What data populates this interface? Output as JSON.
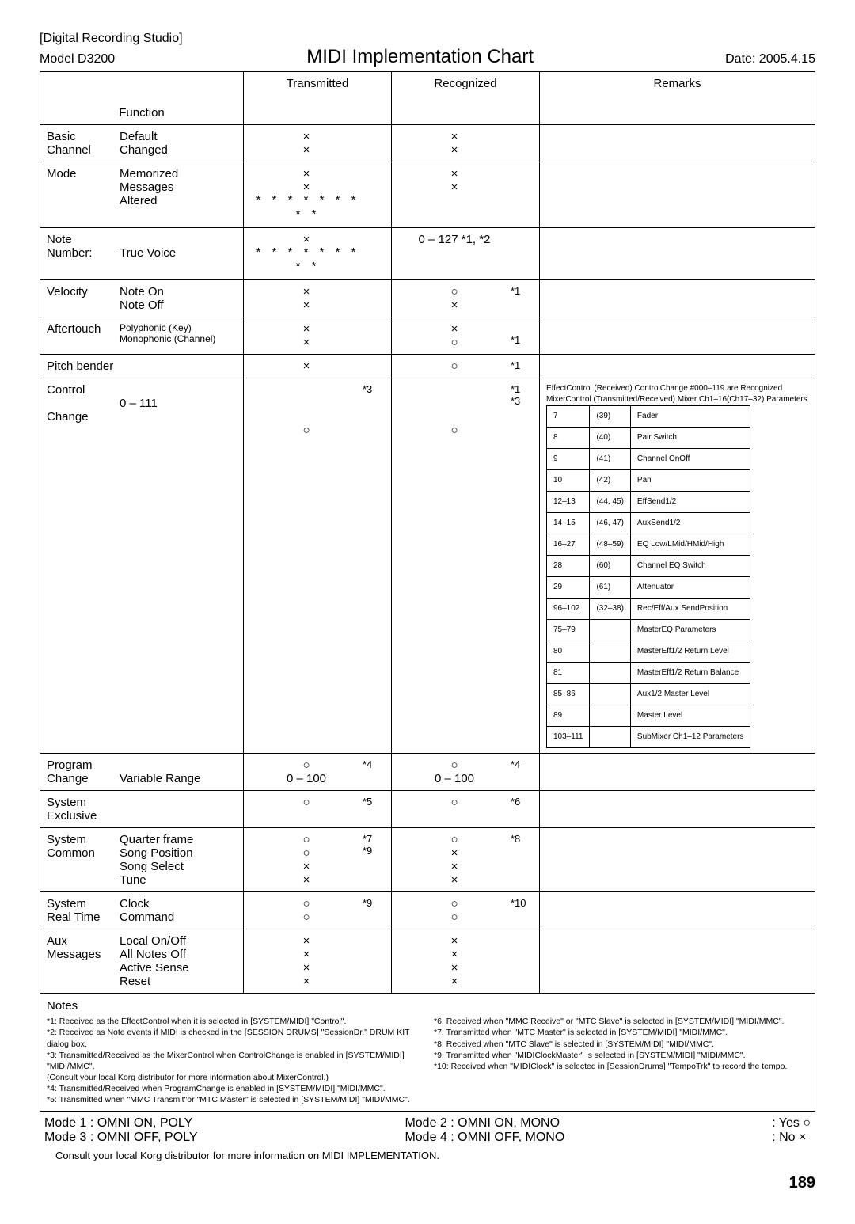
{
  "header": {
    "bracket": "[Digital Recording Studio]",
    "model": "Model D3200",
    "title": "MIDI Implementation Chart",
    "date": "Date: 2005.4.15"
  },
  "columns": {
    "fn": "Function",
    "tx": "Transmitted",
    "rx": "Recognized",
    "rm": "Remarks"
  },
  "rows": [
    {
      "fn_left": "Basic\nChannel",
      "fn_right": "Default\nChanged",
      "tx_main": "×\n×",
      "tx_note": "",
      "rx_main": "×\n×",
      "rx_note": "",
      "remarks": ""
    },
    {
      "fn_left": "Mode",
      "fn_right": "Memorized\nMessages\nAltered",
      "tx_main": "×\n×\n* * * * * * * * *",
      "tx_note": "",
      "rx_main": "×\n×",
      "rx_note": "",
      "remarks": ""
    },
    {
      "fn_left": "Note\nNumber:",
      "fn_right": "\nTrue Voice",
      "tx_main": "×\n* * * * * * * * *",
      "tx_note": "",
      "rx_main": "0 – 127  *1, *2",
      "rx_note": "",
      "remarks": ""
    },
    {
      "fn_left": "Velocity",
      "fn_right": "Note On\nNote Off",
      "tx_main": "×\n×",
      "tx_note": "",
      "rx_main": "○\n×",
      "rx_note": "*1",
      "remarks": ""
    },
    {
      "fn_left": "Aftertouch",
      "fn_right": "Polyphonic (Key)\nMonophonic (Channel)",
      "fn_right_small": true,
      "tx_main": "×\n×",
      "tx_note": "",
      "rx_main": "×\n○",
      "rx_note": "\n*1",
      "remarks": ""
    },
    {
      "fn_left": "Pitch bender",
      "fn_right": "",
      "tx_main": "×",
      "tx_note": "",
      "rx_main": "○",
      "rx_note": "*1",
      "remarks": ""
    },
    {
      "fn_left": "Control\n\nChange",
      "fn_right": "\n0 – 111",
      "tx_main": "\n\n\n○",
      "tx_note": "*3",
      "rx_main": "\n\n\n○",
      "rx_note": "*1\n*3",
      "remarks_cc": true
    },
    {
      "fn_left": "Program\nChange",
      "fn_right": "\nVariable Range",
      "tx_main": "○\n0 – 100",
      "tx_note": "*4",
      "rx_main": "○\n0 – 100",
      "rx_note": "*4",
      "remarks": ""
    },
    {
      "fn_left": "System Exclusive",
      "fn_right": "",
      "tx_main": "○",
      "tx_note": "*5",
      "rx_main": "○",
      "rx_note": "*6",
      "remarks": ""
    },
    {
      "fn_left": "System\nCommon",
      "fn_right": "Quarter frame\nSong Position\nSong Select\nTune",
      "tx_main": "○\n○\n×\n×",
      "tx_note": "*7\n*9",
      "rx_main": "○\n×\n×\n×",
      "rx_note": "*8",
      "remarks": ""
    },
    {
      "fn_left": "System\nReal Time",
      "fn_right": "Clock\nCommand",
      "tx_main": "○\n○",
      "tx_note": "*9",
      "rx_main": "○\n○",
      "rx_note": "*10",
      "remarks": ""
    },
    {
      "fn_left": "Aux\nMessages",
      "fn_right": "Local On/Off\nAll Notes Off\nActive Sense\nReset",
      "tx_main": "×\n×\n×\n×",
      "tx_note": "",
      "rx_main": "×\n×\n×\n×",
      "rx_note": "",
      "remarks": ""
    }
  ],
  "cc_remarks": {
    "lead1": "EffectControl (Received) ControlChange #000–119 are Recognized",
    "lead2": "MixerControl (Transmitted/Received) Mixer Ch1–16(Ch17–32) Parameters",
    "items": [
      [
        "7",
        "(39)",
        "Fader"
      ],
      [
        "8",
        "(40)",
        "Pair Switch"
      ],
      [
        "9",
        "(41)",
        "Channel OnOff"
      ],
      [
        "10",
        "(42)",
        "Pan"
      ],
      [
        "12–13",
        "(44, 45)",
        "EffSend1/2"
      ],
      [
        "14–15",
        "(46, 47)",
        "AuxSend1/2"
      ],
      [
        "16–27",
        "(48–59)",
        "EQ Low/LMid/HMid/High"
      ],
      [
        "28",
        "(60)",
        "Channel EQ Switch"
      ],
      [
        "29",
        "(61)",
        "Attenuator"
      ],
      [
        "96–102",
        "(32–38)",
        "Rec/Eff/Aux SendPosition"
      ],
      [
        "75–79",
        "",
        "MasterEQ Parameters"
      ],
      [
        "80",
        "",
        "MasterEff1/2 Return Level"
      ],
      [
        "81",
        "",
        "MasterEff1/2 Return Balance"
      ],
      [
        "85–86",
        "",
        "Aux1/2 Master Level"
      ],
      [
        "89",
        "",
        "Master Level"
      ],
      [
        "103–111",
        "",
        "SubMixer Ch1–12 Parameters"
      ]
    ]
  },
  "notes": {
    "title": "Notes",
    "left": [
      "*1: Received as the EffectControl when it is selected in [SYSTEM/MIDI] \"Control\".",
      "*2: Received as Note events if MIDI is checked in the [SESSION DRUMS] \"SessionDr.\" DRUM KIT dialog box.",
      "*3: Transmitted/Received as the MixerControl when ControlChange is enabled in [SYSTEM/MIDI]  \"MIDI/MMC\".",
      "     (Consult your local Korg distributor for more information about MixerControl.)",
      "*4: Transmitted/Received when ProgramChange is enabled in [SYSTEM/MIDI]  \"MIDI/MMC\".",
      "*5: Transmitted when \"MMC Transmit\"or \"MTC Master\" is selected in [SYSTEM/MIDI]  \"MIDI/MMC\"."
    ],
    "right": [
      "*6:  Received when \"MMC Receive\" or \"MTC Slave\" is selected in [SYSTEM/MIDI]  \"MIDI/MMC\".",
      "*7:  Transmitted when \"MTC Master\" is selected in [SYSTEM/MIDI]  \"MIDI/MMC\".",
      "*8:  Received when \"MTC Slave\" is selected in [SYSTEM/MIDI]  \"MIDI/MMC\".",
      "*9:  Transmitted when \"MIDIClockMaster\" is selected in [SYSTEM/MIDI]  \"MIDI/MMC\".",
      "*10: Received when \"MIDIClock\" is selected in [SessionDrums] \"TempoTrk\" to record the tempo."
    ]
  },
  "modes": {
    "c1": [
      "Mode 1 : OMNI ON, POLY",
      "Mode 3 : OMNI OFF, POLY"
    ],
    "c2": [
      "Mode 2 : OMNI ON, MONO",
      "Mode 4 : OMNI OFF, MONO"
    ],
    "c3": [
      ": Yes  ○",
      ": No   ×"
    ]
  },
  "footer": "Consult your local Korg distributor for more information on MIDI IMPLEMENTATION.",
  "page": "189"
}
